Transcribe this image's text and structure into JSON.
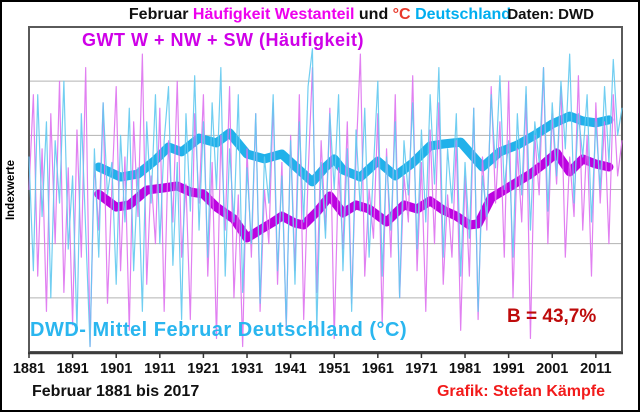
{
  "header": {
    "title_parts": [
      {
        "text": "Februar ",
        "color": "#111111"
      },
      {
        "text": "Häufigkeit Westanteil ",
        "color": "#EE00EE"
      },
      {
        "text": "und ",
        "color": "#111111"
      },
      {
        "text": "°C ",
        "color": "#E8392B"
      },
      {
        "text": "Deutschland",
        "color": "#00AEEF"
      }
    ],
    "source_label": "Daten: DWD"
  },
  "labels": {
    "series_frequency": "GWT W + NW + SW (Häufigkeit)",
    "series_temperature": "DWD- Mittel Februar Deutschland (°C)",
    "determination": "B = 43,7%",
    "ylabel": "Indexwerte"
  },
  "footer": {
    "left": "Februar 1881 bis 2017",
    "right": "Grafik: Stefan Kämpfe"
  },
  "chart_data": {
    "type": "line",
    "title": "Februar Häufigkeit Westanteil und °C Deutschland",
    "xlabel": "",
    "ylabel": "Indexwerte",
    "x_range": [
      1881,
      2017
    ],
    "x_tick_labels": [
      "1881",
      "1891",
      "1901",
      "1911",
      "1921",
      "1931",
      "1941",
      "1951",
      "1961",
      "1971",
      "1981",
      "1991",
      "2001",
      "2011"
    ],
    "ylim": [
      0,
      120
    ],
    "gridline_values": [
      20,
      40,
      60,
      80,
      100
    ],
    "grid": "horizontal-only",
    "legend_position": "text-annotations-inside-plot",
    "annotation": "B = 43,7%",
    "colors": {
      "frequency_raw": "#DE72EF",
      "temperature_raw": "#62C9F0",
      "frequency_smooth": "#BC02E0",
      "temperature_smooth": "#21B1EA",
      "grid": "#b3b3b3",
      "frame": "#5a5a5a"
    },
    "series": [
      {
        "name": "GWT W + NW + SW Häufigkeit (jährliche Indexwerte)",
        "role": "raw",
        "color": "#DE72EF",
        "width": 1.2,
        "x_start": 1881,
        "values": [
          60,
          95,
          28,
          75,
          15,
          88,
          40,
          100,
          22,
          68,
          10,
          82,
          35,
          105,
          2,
          70,
          45,
          92,
          18,
          60,
          98,
          30,
          72,
          8,
          85,
          50,
          110,
          25,
          65,
          40,
          90,
          15,
          78,
          48,
          100,
          35,
          62,
          12,
          88,
          55,
          95,
          28,
          70,
          5,
          80,
          45,
          98,
          20,
          58,
          2,
          75,
          35,
          88,
          15,
          60,
          40,
          92,
          25,
          70,
          8,
          80,
          30,
          95,
          12,
          65,
          105,
          22,
          78,
          45,
          90,
          5,
          68,
          38,
          85,
          18,
          72,
          110,
          28,
          60,
          42,
          88,
          10,
          75,
          35,
          95,
          20,
          65,
          48,
          102,
          30,
          70,
          15,
          82,
          40,
          92,
          25,
          58,
          35,
          78,
          8,
          65,
          28,
          90,
          12,
          72,
          45,
          98,
          55,
          85,
          35,
          100,
          20,
          75,
          48,
          95,
          5,
          80,
          58,
          105,
          40,
          88,
          62,
          98,
          35,
          72,
          50,
          102,
          45,
          80,
          28,
          92,
          55,
          85,
          40,
          95,
          65,
          78
        ]
      },
      {
        "name": "DWD Februar-Mittel Deutschland °C (jährliche Indexwerte)",
        "role": "raw",
        "color": "#62C9F0",
        "width": 1.2,
        "x_start": 1881,
        "values": [
          72,
          30,
          95,
          50,
          85,
          20,
          78,
          55,
          100,
          38,
          65,
          8,
          88,
          45,
          2,
          75,
          35,
          92,
          58,
          70,
          25,
          80,
          48,
          90,
          30,
          68,
          15,
          85,
          55,
          95,
          40,
          78,
          98,
          32,
          70,
          12,
          88,
          52,
          102,
          45,
          85,
          35,
          92,
          60,
          105,
          28,
          75,
          48,
          95,
          22,
          68,
          40,
          88,
          18,
          72,
          55,
          95,
          30,
          65,
          10,
          78,
          25,
          85,
          48,
          98,
          112,
          8,
          70,
          42,
          88,
          60,
          95,
          30,
          75,
          15,
          82,
          52,
          90,
          35,
          68,
          100,
          28,
          72,
          45,
          85,
          20,
          78,
          58,
          92,
          38,
          82,
          48,
          95,
          62,
          105,
          35,
          75,
          55,
          88,
          28,
          70,
          42,
          90,
          15,
          65,
          50,
          95,
          68,
          102,
          60,
          78,
          35,
          88,
          58,
          98,
          45,
          85,
          70,
          105,
          52,
          92,
          65,
          100,
          75,
          110,
          55,
          88,
          72,
          95,
          48,
          85,
          60,
          98,
          70,
          108,
          80,
          90
        ]
      },
      {
        "name": "GWT W + NW + SW Häufigkeit (geglättet)",
        "role": "smooth",
        "color": "#BC02E0",
        "width": 9,
        "years": [
          1897,
          1901,
          1904,
          1908,
          1912,
          1915,
          1918,
          1921,
          1924,
          1928,
          1931,
          1934,
          1937,
          1939,
          1942,
          1944,
          1947,
          1950,
          1953,
          1956,
          1959,
          1963,
          1967,
          1970,
          1973,
          1976,
          1979,
          1982,
          1984,
          1987,
          1990,
          1993,
          1996,
          1999,
          2002,
          2005,
          2008,
          2011,
          2014
        ],
        "values": [
          58.3,
          53.5,
          54.3,
          59.8,
          60.6,
          61.3,
          59.1,
          58.3,
          53.5,
          49.1,
          42.1,
          45.1,
          48,
          50.2,
          47.6,
          46.9,
          51.7,
          57.6,
          51.3,
          54.3,
          52.8,
          48,
          54.3,
          52.8,
          55.8,
          52.4,
          50.2,
          46.9,
          47.3,
          56.9,
          59.8,
          62.8,
          65.7,
          69.4,
          73.5,
          66.5,
          71.3,
          69.4,
          68.3
        ]
      },
      {
        "name": "DWD Februar-Mittel Deutschland °C (geglättet)",
        "role": "smooth",
        "color": "#21B1EA",
        "width": 9,
        "years": [
          1897,
          1902,
          1906,
          1910,
          1913,
          1916,
          1920,
          1924,
          1927,
          1931,
          1935,
          1939,
          1943,
          1946,
          1949,
          1951,
          1953,
          1957,
          1961,
          1965,
          1969,
          1973,
          1976,
          1980,
          1985,
          1989,
          1993,
          1997,
          2001,
          2005,
          2008,
          2011,
          2014
        ],
        "values": [
          68.3,
          64.6,
          65.7,
          70.9,
          75.7,
          73.9,
          79,
          77.2,
          80.9,
          73.1,
          71.3,
          73.1,
          67.2,
          62.8,
          68.3,
          71.3,
          67.2,
          64.6,
          70.5,
          65,
          69.8,
          76.1,
          76.8,
          77.5,
          68.3,
          73.9,
          76.4,
          80.1,
          84.2,
          87.1,
          85.3,
          84.6,
          85.7
        ]
      }
    ]
  }
}
